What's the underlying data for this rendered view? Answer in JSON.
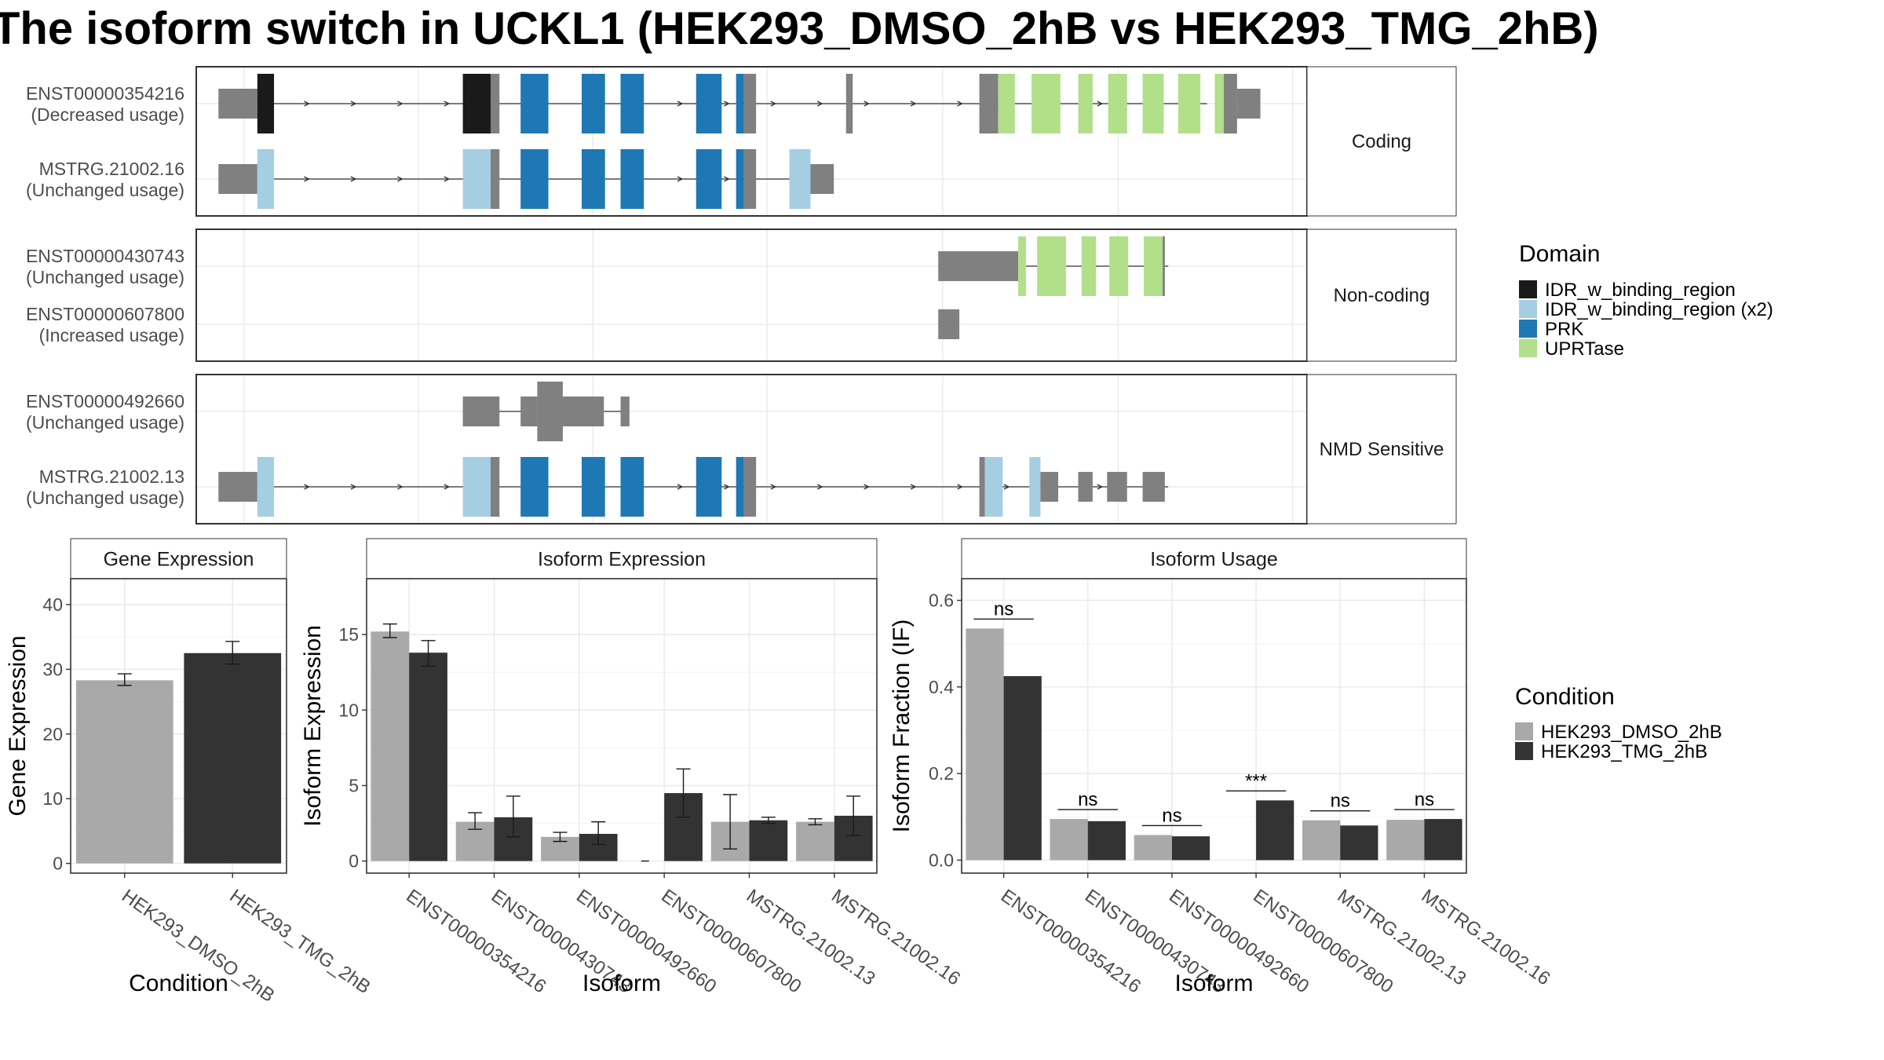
{
  "title": "The isoform switch in UCKL1 (HEK293_DMSO_2hB vs HEK293_TMG_2hB)",
  "colors": {
    "domain_IDR": "#1a1a1a",
    "domain_IDR_x2": "#a6cee3",
    "domain_PRK": "#1f78b4",
    "domain_UPRTase": "#b2df8a",
    "exon": "#808080",
    "dmso": "#a9a9a9",
    "tmg": "#333333"
  },
  "domain_legend": {
    "title": "Domain",
    "items": [
      {
        "label": "IDR_w_binding_region",
        "color": "#1a1a1a"
      },
      {
        "label": "IDR_w_binding_region (x2)",
        "color": "#a6cee3"
      },
      {
        "label": "PRK",
        "color": "#1f78b4"
      },
      {
        "label": "UPRTase",
        "color": "#b2df8a"
      }
    ]
  },
  "condition_legend": {
    "title": "Condition",
    "items": [
      {
        "label": "HEK293_DMSO_2hB",
        "color": "#a9a9a9"
      },
      {
        "label": "HEK293_TMG_2hB",
        "color": "#333333"
      }
    ]
  },
  "structure": {
    "panels": [
      {
        "label": "Coding",
        "transcripts": [
          {
            "id": "ENST00000354216",
            "usage": "(Decreased usage)",
            "arrows": true,
            "intron": [
              0.02,
              0.91
            ],
            "exons": [
              {
                "a": 0.02,
                "b": 0.055,
                "h": "m",
                "c": "exon"
              },
              {
                "a": 0.055,
                "b": 0.07,
                "h": "b",
                "c": "IDR"
              },
              {
                "a": 0.24,
                "b": 0.265,
                "h": "b",
                "c": "IDR"
              },
              {
                "a": 0.265,
                "b": 0.273,
                "h": "b",
                "c": "exon"
              },
              {
                "a": 0.292,
                "b": 0.317,
                "h": "b",
                "c": "PRK"
              },
              {
                "a": 0.347,
                "b": 0.368,
                "h": "b",
                "c": "PRK"
              },
              {
                "a": 0.382,
                "b": 0.403,
                "h": "b",
                "c": "PRK"
              },
              {
                "a": 0.45,
                "b": 0.473,
                "h": "b",
                "c": "PRK"
              },
              {
                "a": 0.486,
                "b": 0.493,
                "h": "b",
                "c": "PRK"
              },
              {
                "a": 0.493,
                "b": 0.504,
                "h": "b",
                "c": "exon"
              },
              {
                "a": 0.585,
                "b": 0.591,
                "h": "b",
                "c": "exon"
              },
              {
                "a": 0.705,
                "b": 0.722,
                "h": "b",
                "c": "exon"
              },
              {
                "a": 0.722,
                "b": 0.737,
                "h": "b",
                "c": "UPRTase"
              },
              {
                "a": 0.752,
                "b": 0.778,
                "h": "b",
                "c": "UPRTase"
              },
              {
                "a": 0.794,
                "b": 0.807,
                "h": "b",
                "c": "UPRTase"
              },
              {
                "a": 0.821,
                "b": 0.838,
                "h": "b",
                "c": "UPRTase"
              },
              {
                "a": 0.852,
                "b": 0.871,
                "h": "b",
                "c": "UPRTase"
              },
              {
                "a": 0.884,
                "b": 0.904,
                "h": "b",
                "c": "UPRTase"
              },
              {
                "a": 0.917,
                "b": 0.925,
                "h": "b",
                "c": "UPRTase"
              },
              {
                "a": 0.925,
                "b": 0.937,
                "h": "b",
                "c": "exon"
              },
              {
                "a": 0.937,
                "b": 0.958,
                "h": "m",
                "c": "exon"
              }
            ]
          },
          {
            "id": "MSTRG.21002.16",
            "usage": "(Unchanged usage)",
            "arrows": true,
            "intron": [
              0.02,
              0.54
            ],
            "exons": [
              {
                "a": 0.02,
                "b": 0.055,
                "h": "m",
                "c": "exon"
              },
              {
                "a": 0.055,
                "b": 0.07,
                "h": "b",
                "c": "IDRx2"
              },
              {
                "a": 0.24,
                "b": 0.265,
                "h": "b",
                "c": "IDRx2"
              },
              {
                "a": 0.265,
                "b": 0.273,
                "h": "b",
                "c": "exon"
              },
              {
                "a": 0.292,
                "b": 0.317,
                "h": "b",
                "c": "PRK"
              },
              {
                "a": 0.347,
                "b": 0.368,
                "h": "b",
                "c": "PRK"
              },
              {
                "a": 0.382,
                "b": 0.403,
                "h": "b",
                "c": "PRK"
              },
              {
                "a": 0.45,
                "b": 0.473,
                "h": "b",
                "c": "PRK"
              },
              {
                "a": 0.486,
                "b": 0.493,
                "h": "b",
                "c": "PRK"
              },
              {
                "a": 0.493,
                "b": 0.504,
                "h": "b",
                "c": "exon"
              },
              {
                "a": 0.534,
                "b": 0.553,
                "h": "b",
                "c": "IDRx2"
              },
              {
                "a": 0.553,
                "b": 0.574,
                "h": "m",
                "c": "exon"
              }
            ]
          }
        ]
      },
      {
        "label": "Non-coding",
        "transcripts": [
          {
            "id": "ENST00000430743",
            "usage": "(Unchanged usage)",
            "arrows": false,
            "intron": [
              0.68,
              0.875
            ],
            "exons": [
              {
                "a": 0.668,
                "b": 0.74,
                "h": "m",
                "c": "exon"
              },
              {
                "a": 0.74,
                "b": 0.747,
                "h": "b",
                "c": "UPRTase"
              },
              {
                "a": 0.757,
                "b": 0.783,
                "h": "b",
                "c": "UPRTase"
              },
              {
                "a": 0.797,
                "b": 0.81,
                "h": "b",
                "c": "UPRTase"
              },
              {
                "a": 0.822,
                "b": 0.839,
                "h": "b",
                "c": "UPRTase"
              },
              {
                "a": 0.853,
                "b": 0.87,
                "h": "b",
                "c": "UPRTase"
              },
              {
                "a": 0.87,
                "b": 0.872,
                "h": "b",
                "c": "exon"
              }
            ]
          },
          {
            "id": "ENST00000607800",
            "usage": "(Increased usage)",
            "arrows": false,
            "intron": null,
            "exons": [
              {
                "a": 0.668,
                "b": 0.687,
                "h": "m",
                "c": "exon"
              }
            ]
          }
        ]
      },
      {
        "label": "NMD Sensitive",
        "transcripts": [
          {
            "id": "ENST00000492660",
            "usage": "(Unchanged usage)",
            "arrows": false,
            "intron": [
              0.24,
              0.39
            ],
            "exons": [
              {
                "a": 0.24,
                "b": 0.273,
                "h": "m",
                "c": "exon"
              },
              {
                "a": 0.292,
                "b": 0.307,
                "h": "m",
                "c": "exon"
              },
              {
                "a": 0.307,
                "b": 0.33,
                "h": "b",
                "c": "exon"
              },
              {
                "a": 0.33,
                "b": 0.367,
                "h": "m",
                "c": "exon"
              },
              {
                "a": 0.382,
                "b": 0.39,
                "h": "m",
                "c": "exon"
              }
            ]
          },
          {
            "id": "MSTRG.21002.13",
            "usage": "(Unchanged usage)",
            "arrows": true,
            "intron": [
              0.02,
              0.875
            ],
            "exons": [
              {
                "a": 0.02,
                "b": 0.055,
                "h": "m",
                "c": "exon"
              },
              {
                "a": 0.055,
                "b": 0.07,
                "h": "b",
                "c": "IDRx2"
              },
              {
                "a": 0.24,
                "b": 0.265,
                "h": "b",
                "c": "IDRx2"
              },
              {
                "a": 0.265,
                "b": 0.273,
                "h": "b",
                "c": "exon"
              },
              {
                "a": 0.292,
                "b": 0.317,
                "h": "b",
                "c": "PRK"
              },
              {
                "a": 0.347,
                "b": 0.368,
                "h": "b",
                "c": "PRK"
              },
              {
                "a": 0.382,
                "b": 0.403,
                "h": "b",
                "c": "PRK"
              },
              {
                "a": 0.45,
                "b": 0.473,
                "h": "b",
                "c": "PRK"
              },
              {
                "a": 0.486,
                "b": 0.493,
                "h": "b",
                "c": "PRK"
              },
              {
                "a": 0.493,
                "b": 0.504,
                "h": "b",
                "c": "exon"
              },
              {
                "a": 0.705,
                "b": 0.71,
                "h": "b",
                "c": "exon"
              },
              {
                "a": 0.71,
                "b": 0.726,
                "h": "b",
                "c": "IDRx2"
              },
              {
                "a": 0.75,
                "b": 0.76,
                "h": "b",
                "c": "IDRx2"
              },
              {
                "a": 0.76,
                "b": 0.776,
                "h": "m",
                "c": "exon"
              },
              {
                "a": 0.794,
                "b": 0.807,
                "h": "m",
                "c": "exon"
              },
              {
                "a": 0.82,
                "b": 0.838,
                "h": "m",
                "c": "exon"
              },
              {
                "a": 0.852,
                "b": 0.872,
                "h": "m",
                "c": "exon"
              }
            ]
          }
        ]
      }
    ]
  },
  "chart_data": [
    {
      "type": "bar",
      "title": "Gene Expression",
      "xlabel": "Condition",
      "ylabel": "Gene Expression",
      "categories": [
        "HEK293_DMSO_2hB",
        "HEK293_TMG_2hB"
      ],
      "values": [
        28.3,
        32.5
      ],
      "errors": [
        [
          27.5,
          29.3
        ],
        [
          30.8,
          34.3
        ]
      ],
      "ylim": [
        -1.5,
        44
      ],
      "yticks": [
        0,
        10,
        20,
        30,
        40
      ],
      "grid": true
    },
    {
      "type": "bar",
      "title": "Isoform Expression",
      "xlabel": "Isoform",
      "ylabel": "Isoform Expression",
      "categories": [
        "ENST00000354216",
        "ENST00000430743",
        "ENST00000492660",
        "ENST00000607800",
        "MSTRG.21002.13",
        "MSTRG.21002.16"
      ],
      "series": [
        {
          "name": "HEK293_DMSO_2hB",
          "values": [
            15.2,
            2.6,
            1.6,
            0.0,
            2.6,
            2.6
          ],
          "errors": [
            [
              14.8,
              15.7
            ],
            [
              2.1,
              3.2
            ],
            [
              1.3,
              1.9
            ],
            [
              0.0,
              0.0
            ],
            [
              0.8,
              4.4
            ],
            [
              2.4,
              2.8
            ]
          ]
        },
        {
          "name": "HEK293_TMG_2hB",
          "values": [
            13.8,
            2.9,
            1.8,
            4.5,
            2.7,
            3.0
          ],
          "errors": [
            [
              12.9,
              14.6
            ],
            [
              1.6,
              4.3
            ],
            [
              1.1,
              2.6
            ],
            [
              2.9,
              6.1
            ],
            [
              2.5,
              2.9
            ],
            [
              1.7,
              4.3
            ]
          ]
        }
      ],
      "ylim": [
        -0.8,
        18.7
      ],
      "yticks": [
        0,
        5,
        10,
        15
      ],
      "grid": true
    },
    {
      "type": "bar",
      "title": "Isoform Usage",
      "xlabel": "Isoform",
      "ylabel": "Isoform Fraction (IF)",
      "categories": [
        "ENST00000354216",
        "ENST00000430743",
        "ENST00000492660",
        "ENST00000607800",
        "MSTRG.21002.13",
        "MSTRG.21002.16"
      ],
      "series": [
        {
          "name": "HEK293_DMSO_2hB",
          "values": [
            0.535,
            0.095,
            0.058,
            0.0,
            0.092,
            0.093
          ]
        },
        {
          "name": "HEK293_TMG_2hB",
          "values": [
            0.425,
            0.09,
            0.055,
            0.138,
            0.08,
            0.095
          ]
        }
      ],
      "significance": [
        "ns",
        "ns",
        "ns",
        "***",
        "ns",
        "ns"
      ],
      "ylim": [
        -0.03,
        0.65
      ],
      "yticks": [
        "0.0",
        "0.2",
        "0.4",
        "0.6"
      ],
      "grid": true
    }
  ]
}
